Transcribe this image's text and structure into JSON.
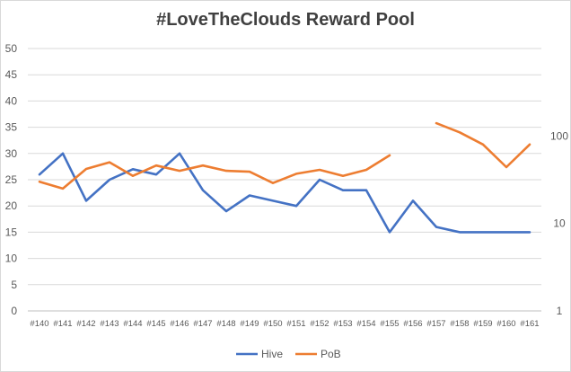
{
  "chart_data": {
    "type": "line",
    "title": "#LoveTheClouds Reward Pool",
    "categories": [
      "#140",
      "#141",
      "#142",
      "#143",
      "#144",
      "#145",
      "#146",
      "#147",
      "#148",
      "#149",
      "#150",
      "#151",
      "#152",
      "#153",
      "#154",
      "#155",
      "#156",
      "#157",
      "#158",
      "#159",
      "#160",
      "#161"
    ],
    "y_left": {
      "ticks": [
        "0",
        "5",
        "10",
        "15",
        "20",
        "25",
        "30",
        "35",
        "40",
        "45",
        "50"
      ],
      "min": 0,
      "max": 50
    },
    "y_right": {
      "scale": "log",
      "ticks": [
        "1",
        "10",
        "100"
      ],
      "min": 1,
      "max": 1000
    },
    "series": [
      {
        "name": "Hive",
        "axis": "left",
        "color": "#4472c4",
        "values": [
          26,
          30,
          21,
          25,
          27,
          26,
          30,
          23,
          19,
          22,
          21,
          20,
          25,
          23,
          23,
          15,
          21,
          16,
          15,
          15,
          15,
          15
        ]
      },
      {
        "name": "PoB",
        "axis": "right",
        "color": "#ed7d31",
        "values": [
          30,
          25,
          42,
          50,
          35,
          46,
          40,
          46,
          40,
          39,
          29,
          37,
          41,
          35,
          41,
          60,
          null,
          140,
          110,
          80,
          44,
          80
        ]
      }
    ],
    "grid": true,
    "legend": "bottom"
  }
}
